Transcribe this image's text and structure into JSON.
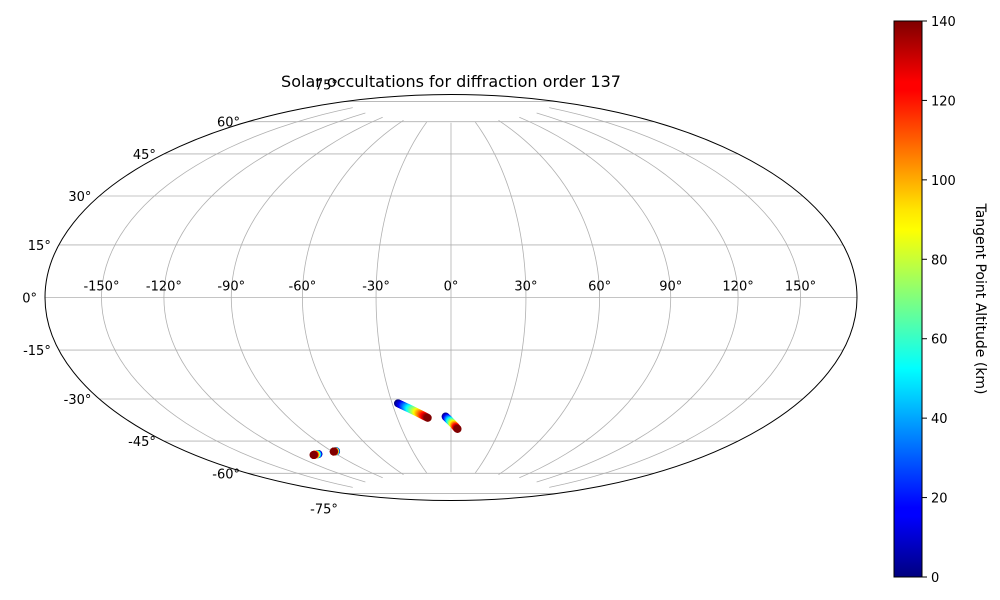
{
  "chart_data": {
    "type": "scatter",
    "projection": "hammer",
    "title": "Solar occultations for diffraction order 137",
    "grid": true,
    "lon_ticks": [
      -150,
      -120,
      -90,
      -60,
      -30,
      0,
      30,
      60,
      90,
      120,
      150
    ],
    "lon_tick_labels": [
      "-150°",
      "-120°",
      "-90°",
      "-60°",
      "-30°",
      "0°",
      "30°",
      "60°",
      "90°",
      "120°",
      "150°"
    ],
    "lat_ticks": [
      75,
      60,
      45,
      30,
      15,
      0,
      -15,
      -30,
      -45,
      -60,
      -75
    ],
    "lat_tick_labels": [
      "75°",
      "60°",
      "45°",
      "30°",
      "15°",
      "0°",
      "-15°",
      "-30°",
      "-45°",
      "-60°",
      "-75°"
    ],
    "colorbar": {
      "label": "Tangent Point Altitude (km)",
      "range": [
        0,
        140
      ],
      "ticks": [
        0,
        20,
        40,
        60,
        80,
        100,
        120,
        140
      ],
      "tick_labels": [
        "0",
        "20",
        "40",
        "60",
        "80",
        "100",
        "120",
        "140"
      ],
      "colormap": "jet"
    },
    "series": [
      {
        "lon_range": [
          -27.0,
          -13.0
        ],
        "lat_range": [
          -43.0,
          -49.5
        ],
        "alt_range": [
          0,
          140
        ]
      },
      {
        "lon_range": [
          -3.0,
          4.0
        ],
        "lat_range": [
          -49.0,
          -54.5
        ],
        "alt_range": [
          0,
          140
        ]
      },
      {
        "lon_range": [
          -102.5,
          -107.0
        ],
        "lat_range": [
          -61.5,
          -61.5
        ],
        "alt_range": [
          0,
          140
        ]
      },
      {
        "lon_range": [
          -87.0,
          -89.0
        ],
        "lat_range": [
          -61.5,
          -61.5
        ],
        "alt_range": [
          0,
          140
        ]
      }
    ]
  }
}
